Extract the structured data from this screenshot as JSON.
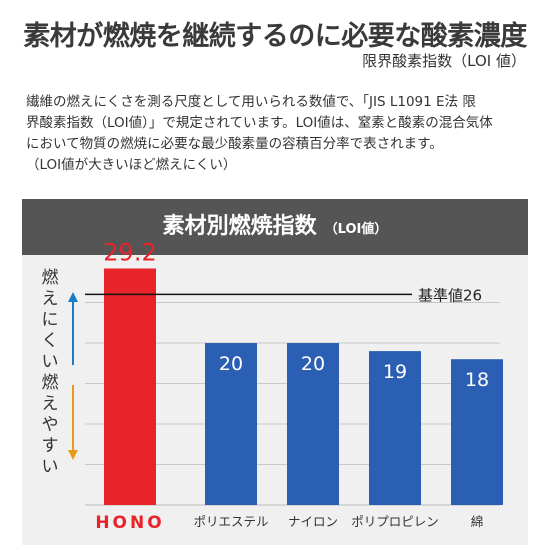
{
  "title": "素材が燃焼を継続するのに必要な酸素濃度",
  "subtitle": "限界酸素指数（LOI 値）",
  "description": [
    "繊維の燃えにくさを測る尺度として用いられる数値で、「JIS L1091 E法 限",
    "界酸素指数（LOI値）」で規定されています。LOI値は、窒素と酸素の混合気体",
    "において物質の燃焼に必要な最少酸素量の容積百分率で表されます。",
    "（LOI値が大きいほど燃えにくい）"
  ],
  "panel": {
    "title": "素材別燃焼指数",
    "title_suffix": "（LOI値）"
  },
  "side_labels": {
    "top": [
      "燃",
      "え",
      "に",
      "く",
      "い"
    ],
    "bottom": [
      "燃",
      "え",
      "や",
      "す",
      "い"
    ]
  },
  "colors": {
    "highlight": "#e8232a",
    "bar": "#2a5fb3",
    "arrow_top": "#1a7cc4",
    "arrow_bottom": "#e89b1a",
    "baseline": "#111111",
    "grid": "#c8c8c8"
  },
  "chart_data": {
    "type": "bar",
    "categories": [
      "HONO",
      "ポリエステル",
      "ナイロン",
      "ポリプロピレン",
      "綿"
    ],
    "values": [
      29.2,
      20,
      20,
      19,
      18
    ],
    "value_labels": [
      "29.2",
      "20",
      "20",
      "19",
      "18"
    ],
    "highlight_index": 0,
    "reference_line": {
      "value": 26,
      "label": "基準値26"
    },
    "ylim": [
      0,
      30
    ],
    "grid": true,
    "legend": "none"
  }
}
